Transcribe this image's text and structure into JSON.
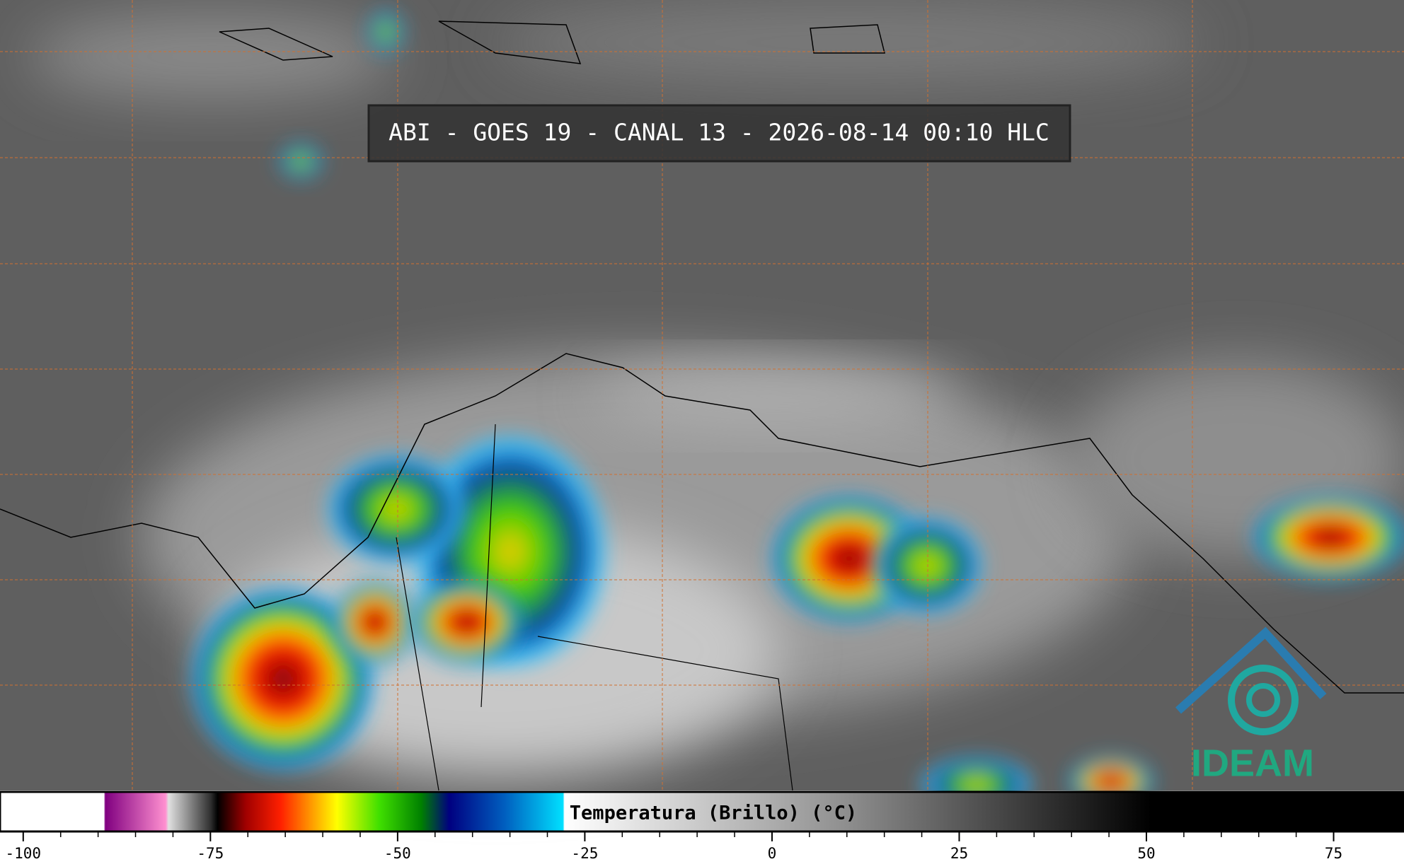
{
  "title": "ABI - GOES 19 - CANAL 13 - 2026-08-14 00:10 HLC",
  "logo": "IDEAM",
  "colorbar": {
    "label": "Temperatura (Brillo) (°C)",
    "xlim": [
      -103.1,
      84.4
    ],
    "ticks": [
      -100,
      -75,
      -50,
      -25,
      0,
      25,
      50,
      75
    ]
  }
}
